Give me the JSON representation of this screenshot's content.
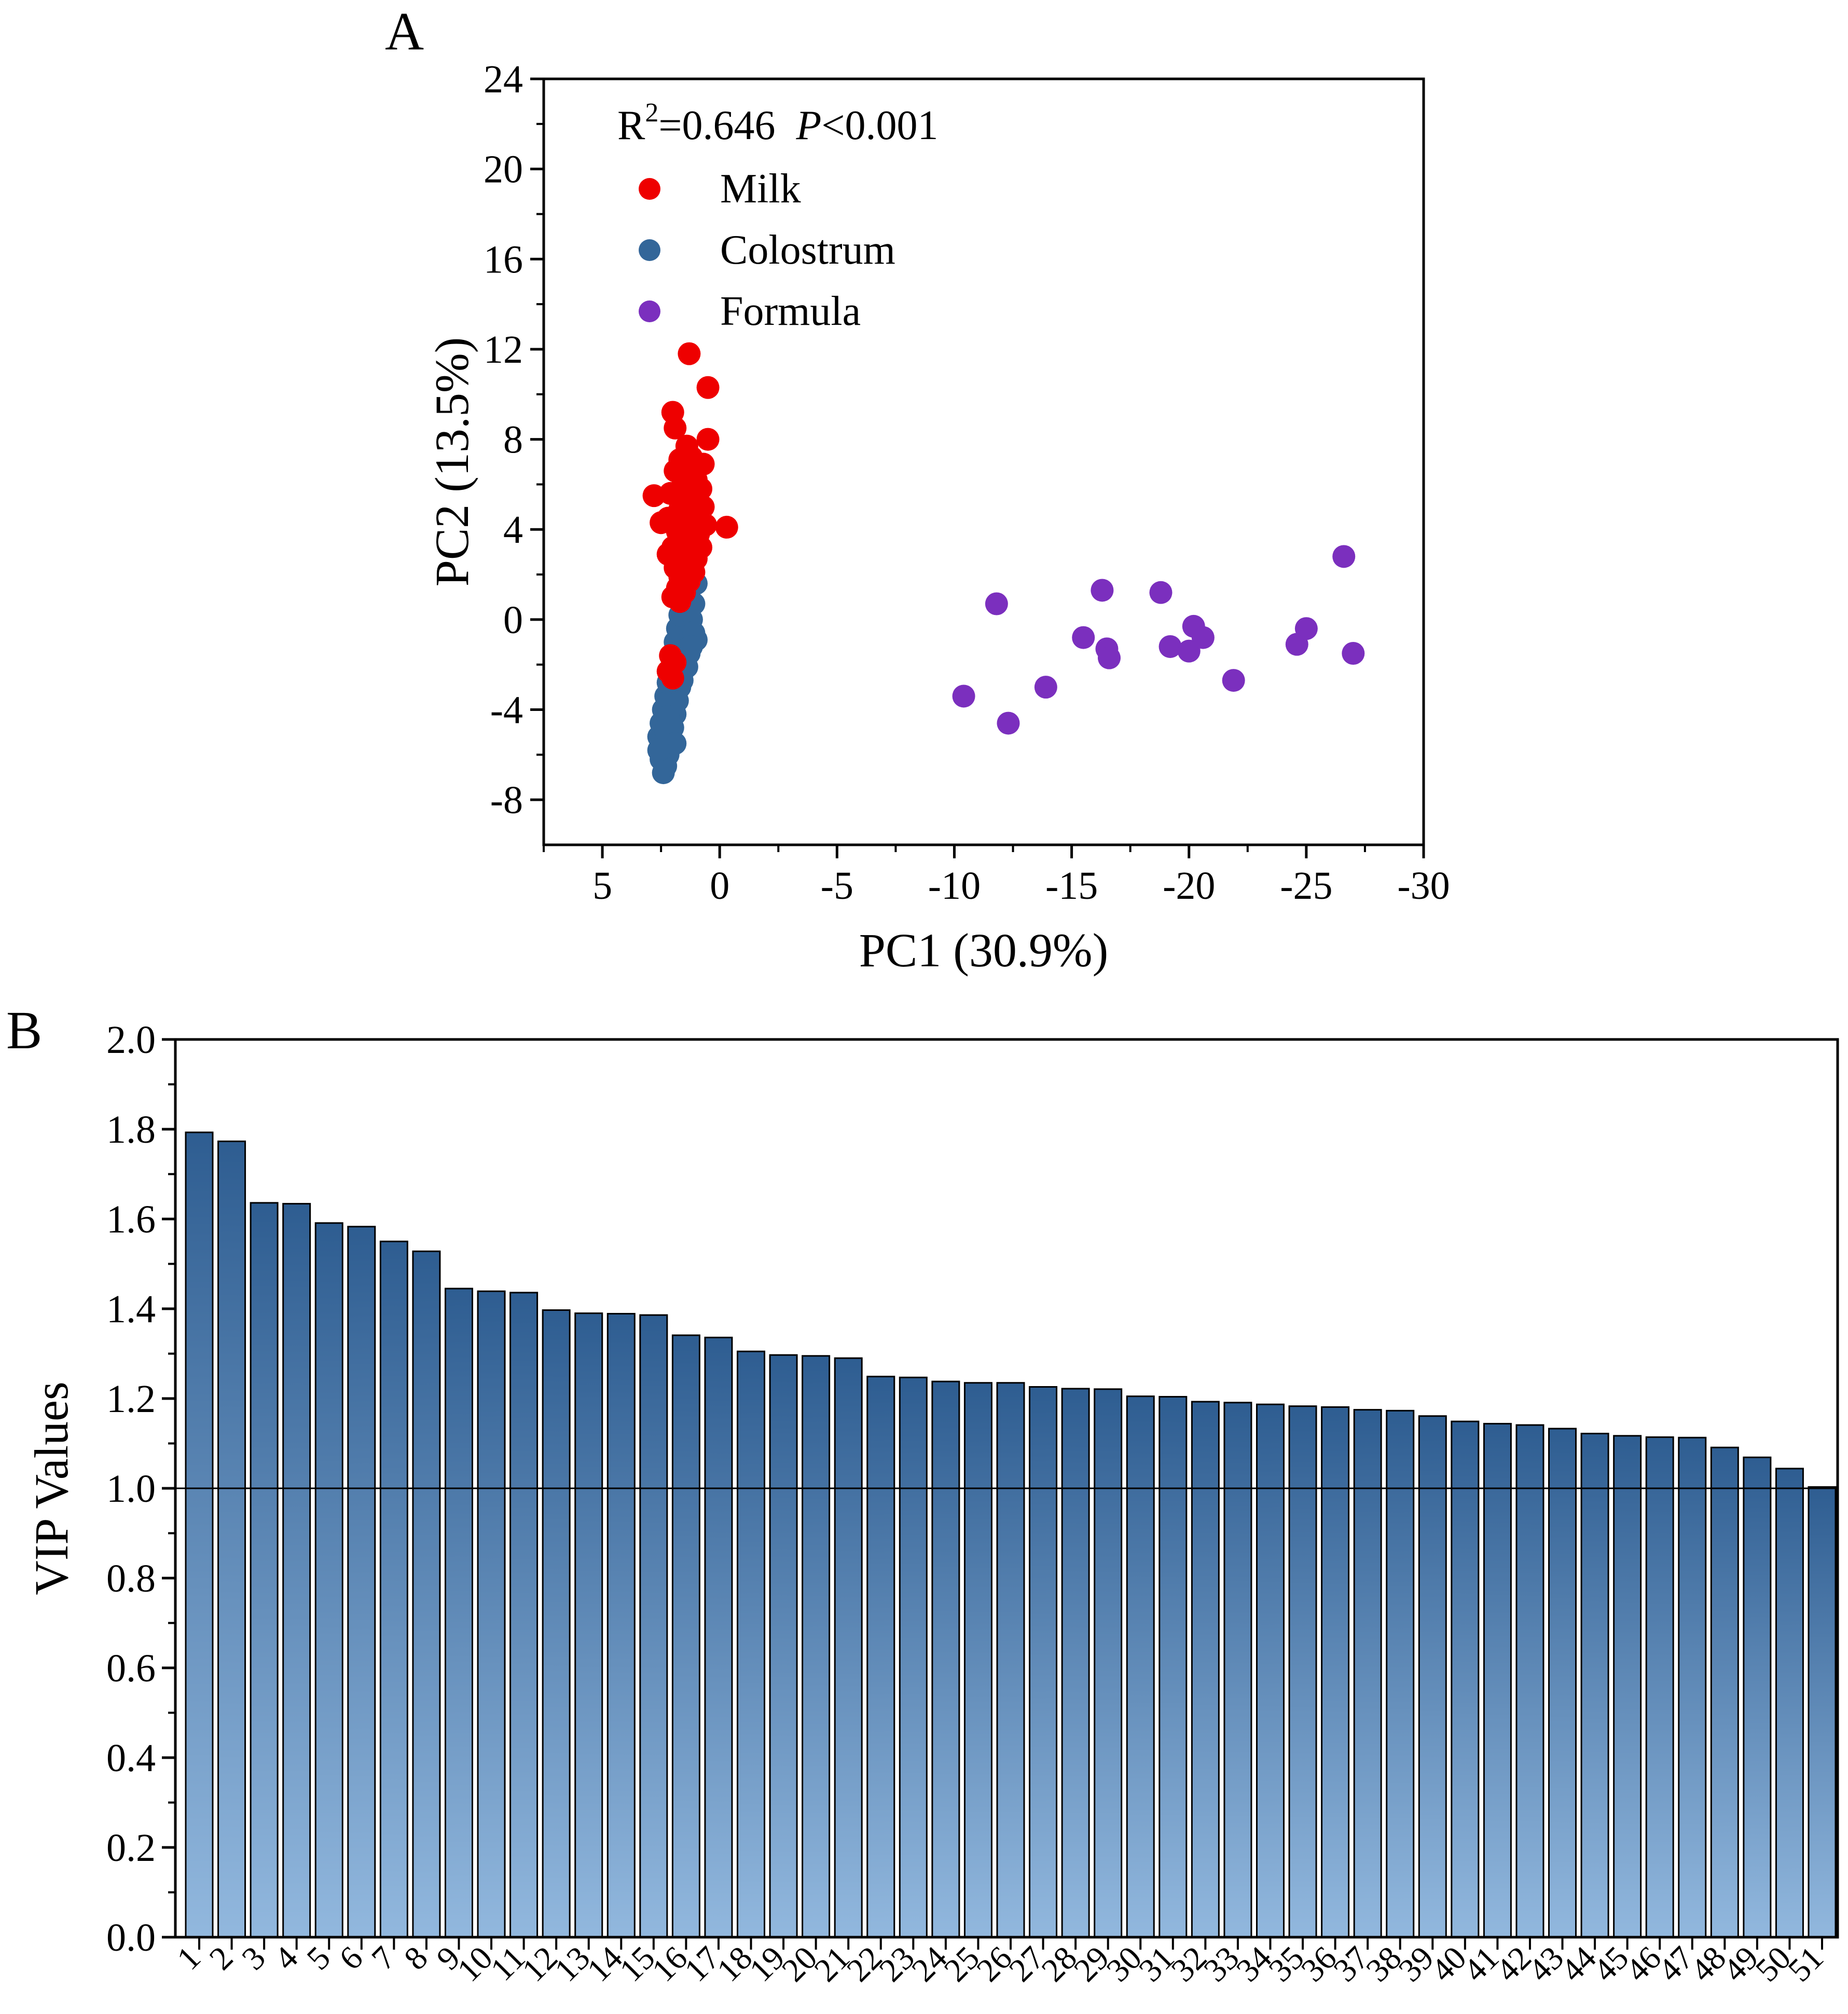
{
  "chart_data": [
    {
      "type": "scatter",
      "panel_label": "A",
      "annotation": {
        "r2_prefix": "R",
        "r2_sup": "2",
        "r2_value": "=0.646",
        "p_symbol": "P",
        "p_value": "<0.001"
      },
      "xlabel": "PC1 (30.9%)",
      "ylabel": "PC2 (13.5%)",
      "xlim": [
        7.5,
        -30
      ],
      "ylim": [
        -10,
        24
      ],
      "xticks": [
        5,
        0,
        -5,
        -10,
        -15,
        -20,
        -25,
        -30
      ],
      "xtick_labels": [
        "5",
        "0",
        "-5",
        "-10",
        "-15",
        "-20",
        "-25",
        "-30"
      ],
      "yticks": [
        -8,
        -4,
        0,
        4,
        8,
        12,
        16,
        20,
        24
      ],
      "ytick_labels": [
        "-8",
        "-4",
        "0",
        "4",
        "8",
        "12",
        "16",
        "20",
        "24"
      ],
      "legend_position": "top-left",
      "series": [
        {
          "name": "Colostrum",
          "color": "#336699",
          "points": [
            [
              2.4,
              -6.8
            ],
            [
              2.3,
              -6.5
            ],
            [
              2.5,
              -6.2
            ],
            [
              2.2,
              -6.0
            ],
            [
              2.4,
              -5.7
            ],
            [
              2.1,
              -5.4
            ],
            [
              2.6,
              -5.2
            ],
            [
              2.3,
              -5.0
            ],
            [
              2.0,
              -4.8
            ],
            [
              2.5,
              -4.6
            ],
            [
              2.2,
              -4.4
            ],
            [
              1.9,
              -4.2
            ],
            [
              2.4,
              -4.0
            ],
            [
              2.1,
              -3.8
            ],
            [
              1.8,
              -3.6
            ],
            [
              2.3,
              -3.4
            ],
            [
              2.0,
              -3.2
            ],
            [
              1.7,
              -3.0
            ],
            [
              2.2,
              -2.8
            ],
            [
              1.9,
              -2.6
            ],
            [
              1.6,
              -2.4
            ],
            [
              2.1,
              -2.2
            ],
            [
              1.8,
              -2.0
            ],
            [
              1.5,
              -1.8
            ],
            [
              2.0,
              -1.6
            ],
            [
              1.7,
              -1.4
            ],
            [
              1.4,
              -1.2
            ],
            [
              1.9,
              -1.0
            ],
            [
              1.6,
              -0.8
            ],
            [
              1.3,
              -0.6
            ],
            [
              1.8,
              -0.4
            ],
            [
              1.5,
              -0.2
            ],
            [
              1.2,
              0.0
            ],
            [
              1.7,
              0.2
            ],
            [
              1.4,
              0.4
            ],
            [
              1.1,
              0.7
            ],
            [
              1.6,
              1.0
            ],
            [
              1.3,
              1.3
            ],
            [
              1.0,
              1.6
            ],
            [
              2.0,
              -3.9
            ],
            [
              1.6,
              -2.7
            ],
            [
              1.3,
              -1.5
            ],
            [
              1.0,
              -0.9
            ],
            [
              2.3,
              -4.9
            ],
            [
              1.9,
              -5.5
            ],
            [
              2.6,
              -5.8
            ],
            [
              1.1,
              -0.6
            ],
            [
              1.4,
              -2.1
            ],
            [
              1.2,
              -1.2
            ],
            [
              2.2,
              -4.3
            ]
          ]
        },
        {
          "name": "Milk",
          "color": "#ee0000",
          "points": [
            [
              1.3,
              11.8
            ],
            [
              0.5,
              10.3
            ],
            [
              2.0,
              9.2
            ],
            [
              1.9,
              8.5
            ],
            [
              0.5,
              8.0
            ],
            [
              1.4,
              7.7
            ],
            [
              1.2,
              7.2
            ],
            [
              0.7,
              6.9
            ],
            [
              1.9,
              6.6
            ],
            [
              1.6,
              6.4
            ],
            [
              1.0,
              6.2
            ],
            [
              0.8,
              5.8
            ],
            [
              2.1,
              5.6
            ],
            [
              1.5,
              5.4
            ],
            [
              2.8,
              5.5
            ],
            [
              1.1,
              5.2
            ],
            [
              0.7,
              5.0
            ],
            [
              1.7,
              4.9
            ],
            [
              1.3,
              4.7
            ],
            [
              2.2,
              4.5
            ],
            [
              1.0,
              4.4
            ],
            [
              0.6,
              4.2
            ],
            [
              2.5,
              4.3
            ],
            [
              1.4,
              4.1
            ],
            [
              1.8,
              3.9
            ],
            [
              0.9,
              3.8
            ],
            [
              -0.3,
              4.1
            ],
            [
              1.2,
              3.6
            ],
            [
              1.6,
              3.4
            ],
            [
              2.0,
              3.2
            ],
            [
              0.8,
              3.2
            ],
            [
              1.3,
              3.0
            ],
            [
              2.2,
              2.9
            ],
            [
              1.0,
              2.7
            ],
            [
              1.5,
              2.5
            ],
            [
              1.9,
              2.3
            ],
            [
              1.1,
              2.1
            ],
            [
              1.7,
              1.9
            ],
            [
              1.3,
              1.7
            ],
            [
              1.8,
              1.4
            ],
            [
              1.5,
              1.2
            ],
            [
              2.0,
              1.0
            ],
            [
              1.7,
              0.8
            ],
            [
              2.1,
              -1.6
            ],
            [
              1.9,
              -1.9
            ],
            [
              2.2,
              -2.3
            ],
            [
              2.0,
              -2.6
            ],
            [
              1.6,
              5.9
            ],
            [
              1.0,
              6.8
            ],
            [
              1.7,
              7.1
            ]
          ]
        },
        {
          "name": "Formula",
          "color": "#7b2fbe",
          "points": [
            [
              -11.8,
              0.7
            ],
            [
              -10.4,
              -3.4
            ],
            [
              -12.3,
              -4.6
            ],
            [
              -13.9,
              -3.0
            ],
            [
              -15.5,
              -0.8
            ],
            [
              -16.3,
              1.3
            ],
            [
              -16.5,
              -1.3
            ],
            [
              -16.6,
              -1.7
            ],
            [
              -18.8,
              1.2
            ],
            [
              -19.2,
              -1.2
            ],
            [
              -20.0,
              -1.4
            ],
            [
              -20.2,
              -0.3
            ],
            [
              -20.6,
              -0.8
            ],
            [
              -21.9,
              -2.7
            ],
            [
              -24.6,
              -1.1
            ],
            [
              -25.0,
              -0.4
            ],
            [
              -26.6,
              2.8
            ],
            [
              -27.0,
              -1.5
            ]
          ]
        }
      ]
    },
    {
      "type": "bar",
      "panel_label": "B",
      "xlabel": "",
      "ylabel": "VIP Values",
      "ylim": [
        0,
        2.0
      ],
      "yticks": [
        0.0,
        0.2,
        0.4,
        0.6,
        0.8,
        1.0,
        1.2,
        1.4,
        1.6,
        1.8,
        2.0
      ],
      "ytick_labels": [
        "0.0",
        "0.2",
        "0.4",
        "0.6",
        "0.8",
        "1.0",
        "1.2",
        "1.4",
        "1.6",
        "1.8",
        "2.0"
      ],
      "reference_line": 1.0,
      "bar_color_top": "#2e5d91",
      "bar_color_bottom": "#92b8de",
      "categories": [
        "1",
        "2",
        "3",
        "4",
        "5",
        "6",
        "7",
        "8",
        "9",
        "10",
        "11",
        "12",
        "13",
        "14",
        "15",
        "16",
        "17",
        "18",
        "19",
        "20",
        "21",
        "22",
        "23",
        "24",
        "25",
        "26",
        "27",
        "28",
        "29",
        "30",
        "31",
        "32",
        "33",
        "34",
        "35",
        "36",
        "37",
        "38",
        "39",
        "40",
        "41",
        "42",
        "43",
        "44",
        "45",
        "46",
        "47",
        "48",
        "49",
        "50",
        "51"
      ],
      "values": [
        1.793,
        1.773,
        1.636,
        1.634,
        1.591,
        1.583,
        1.55,
        1.528,
        1.445,
        1.439,
        1.436,
        1.397,
        1.39,
        1.389,
        1.386,
        1.341,
        1.336,
        1.305,
        1.297,
        1.295,
        1.29,
        1.249,
        1.247,
        1.238,
        1.235,
        1.235,
        1.226,
        1.222,
        1.221,
        1.205,
        1.204,
        1.193,
        1.191,
        1.187,
        1.183,
        1.181,
        1.175,
        1.173,
        1.161,
        1.149,
        1.144,
        1.141,
        1.133,
        1.122,
        1.117,
        1.114,
        1.113,
        1.091,
        1.069,
        1.044,
        1.003
      ]
    }
  ]
}
